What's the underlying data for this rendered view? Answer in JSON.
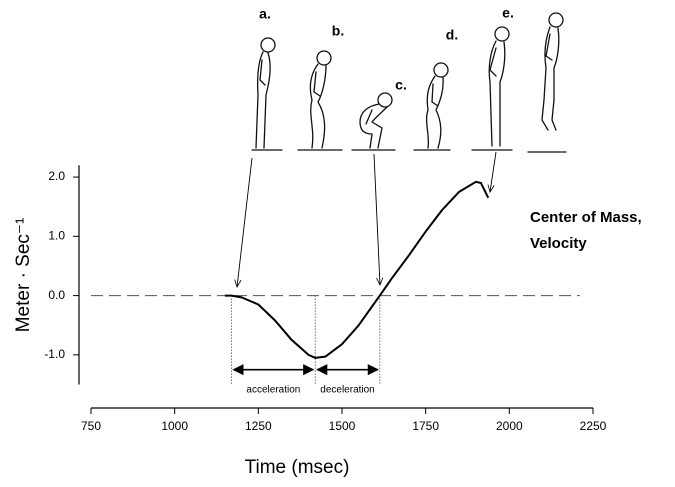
{
  "chart_data": {
    "type": "line",
    "xlabel": "Time  (msec)",
    "ylabel": "Meter · Sec⁻¹",
    "x": [
      1150,
      1170,
      1200,
      1250,
      1300,
      1350,
      1400,
      1420,
      1450,
      1500,
      1550,
      1613,
      1650,
      1700,
      1750,
      1800,
      1850,
      1900,
      1915,
      1937
    ],
    "series": [
      {
        "color": "#000000",
        "values": [
          0.0,
          0.0,
          -0.03,
          -0.15,
          -0.42,
          -0.75,
          -1.0,
          -1.05,
          -1.03,
          -0.82,
          -0.5,
          0.0,
          0.3,
          0.68,
          1.08,
          1.45,
          1.75,
          1.92,
          1.9,
          1.65
        ]
      }
    ],
    "xlim": [
      750,
      2250
    ],
    "ylim": [
      -1.5,
      2.2
    ],
    "xticks": [
      750,
      1000,
      1250,
      1500,
      1750,
      2000,
      2250
    ],
    "yticks": [
      {
        "value": 2,
        "label": "2.0"
      },
      {
        "value": 1,
        "label": "1.0"
      },
      {
        "value": 0,
        "label": "0.0"
      },
      {
        "value": -1,
        "label": "-1.0"
      }
    ],
    "reference_line": 0,
    "phase_bounds": [
      1170,
      1420,
      1613
    ],
    "phases": [
      "acceleration",
      "deceleration"
    ],
    "curve_label": [
      "Center of Mass,",
      "Velocity"
    ],
    "figure_labels": [
      "a.",
      "b.",
      "c.",
      "d.",
      "e."
    ]
  }
}
